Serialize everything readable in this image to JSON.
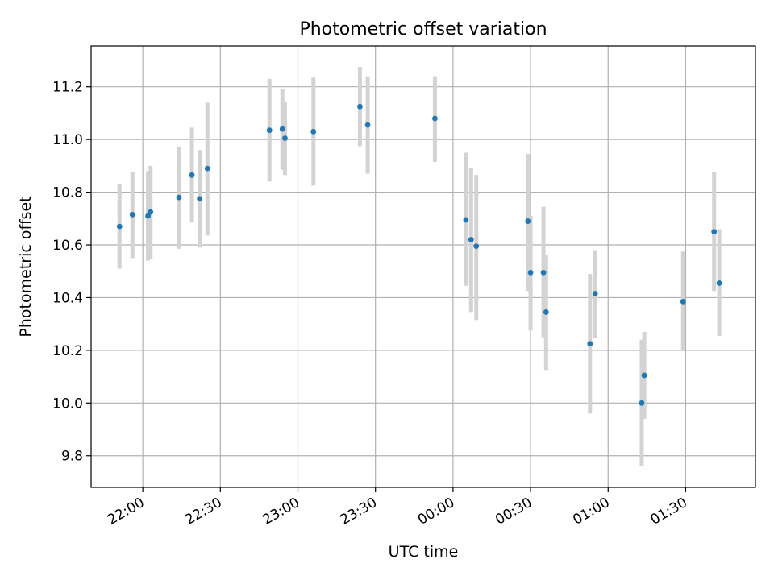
{
  "chart_data": {
    "type": "scatter",
    "title": "Photometric offset variation",
    "xlabel": "UTC time",
    "ylabel": "Photometric offset",
    "xlim": [
      "21:40",
      "01:57"
    ],
    "ylim": [
      9.68,
      11.355
    ],
    "x_ticks": [
      "22:00",
      "22:30",
      "23:00",
      "23:30",
      "00:00",
      "00:30",
      "01:00",
      "01:30"
    ],
    "y_ticks": [
      "9.8",
      "10.0",
      "10.2",
      "10.4",
      "10.6",
      "10.8",
      "11.0",
      "11.2"
    ],
    "grid": true,
    "point_color": "#1f77b4",
    "errorbar_color": "#d3d3d3",
    "points": [
      {
        "x": "21:51",
        "y": 10.67,
        "lo": 10.51,
        "hi": 10.83
      },
      {
        "x": "21:56",
        "y": 10.715,
        "lo": 10.55,
        "hi": 10.875
      },
      {
        "x": "22:02",
        "y": 10.71,
        "lo": 10.54,
        "hi": 10.88
      },
      {
        "x": "22:03",
        "y": 10.725,
        "lo": 10.545,
        "hi": 10.9
      },
      {
        "x": "22:14",
        "y": 10.78,
        "lo": 10.585,
        "hi": 10.97
      },
      {
        "x": "22:19",
        "y": 10.865,
        "lo": 10.685,
        "hi": 11.045
      },
      {
        "x": "22:22",
        "y": 10.775,
        "lo": 10.59,
        "hi": 10.96
      },
      {
        "x": "22:25",
        "y": 10.89,
        "lo": 10.635,
        "hi": 11.14
      },
      {
        "x": "22:49",
        "y": 11.035,
        "lo": 10.84,
        "hi": 11.23
      },
      {
        "x": "22:54",
        "y": 11.04,
        "lo": 10.885,
        "hi": 11.19
      },
      {
        "x": "22:55",
        "y": 11.005,
        "lo": 10.865,
        "hi": 11.145
      },
      {
        "x": "23:06",
        "y": 11.03,
        "lo": 10.825,
        "hi": 11.235
      },
      {
        "x": "23:24",
        "y": 11.125,
        "lo": 10.975,
        "hi": 11.275
      },
      {
        "x": "23:27",
        "y": 11.055,
        "lo": 10.87,
        "hi": 11.24
      },
      {
        "x": "23:53",
        "y": 11.08,
        "lo": 10.915,
        "hi": 11.24
      },
      {
        "x": "00:05",
        "y": 10.695,
        "lo": 10.445,
        "hi": 10.95
      },
      {
        "x": "00:07",
        "y": 10.62,
        "lo": 10.345,
        "hi": 10.89
      },
      {
        "x": "00:09",
        "y": 10.595,
        "lo": 10.315,
        "hi": 10.865
      },
      {
        "x": "00:29",
        "y": 10.69,
        "lo": 10.425,
        "hi": 10.945
      },
      {
        "x": "00:30",
        "y": 10.495,
        "lo": 10.275,
        "hi": 10.71
      },
      {
        "x": "00:35",
        "y": 10.495,
        "lo": 10.25,
        "hi": 10.745
      },
      {
        "x": "00:36",
        "y": 10.345,
        "lo": 10.125,
        "hi": 10.56
      },
      {
        "x": "00:53",
        "y": 10.225,
        "lo": 9.96,
        "hi": 10.49
      },
      {
        "x": "00:55",
        "y": 10.415,
        "lo": 10.245,
        "hi": 10.58
      },
      {
        "x": "01:13",
        "y": 10.0,
        "lo": 9.76,
        "hi": 10.24
      },
      {
        "x": "01:14",
        "y": 10.105,
        "lo": 9.94,
        "hi": 10.27
      },
      {
        "x": "01:29",
        "y": 10.385,
        "lo": 10.2,
        "hi": 10.575
      },
      {
        "x": "01:41",
        "y": 10.65,
        "lo": 10.425,
        "hi": 10.875
      },
      {
        "x": "01:43",
        "y": 10.455,
        "lo": 10.255,
        "hi": 10.66
      }
    ]
  }
}
